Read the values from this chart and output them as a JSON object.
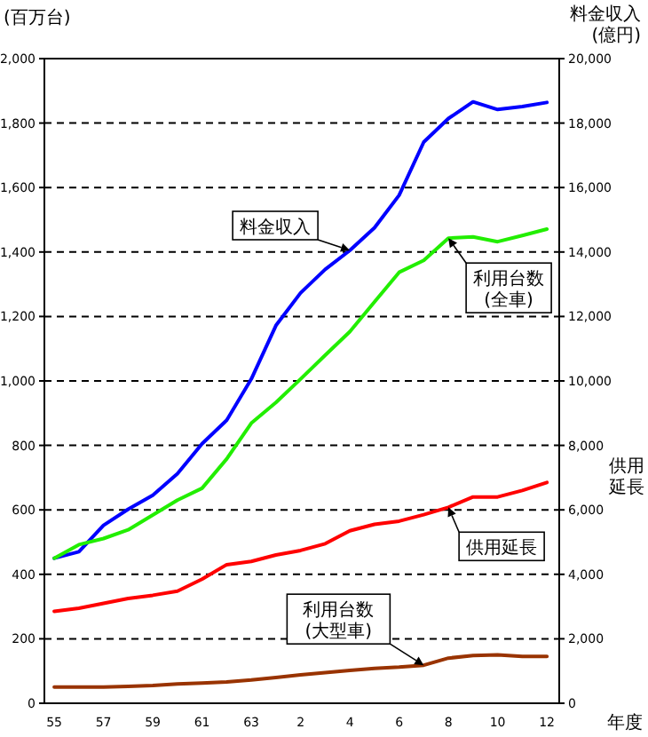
{
  "chart_data": {
    "type": "line",
    "ylabel": "(百万台)",
    "y2label": "料金収入 (億円)",
    "xlabel": "年度",
    "annotations": [
      "供用延長"
    ],
    "categories": [
      "55",
      null,
      "57",
      null,
      "59",
      null,
      "61",
      null,
      "63",
      null,
      "2",
      null,
      "4",
      null,
      "6",
      null,
      "8",
      null,
      "10",
      null,
      "12"
    ],
    "series": [
      {
        "name": "料金収入",
        "color": "#0000ff",
        "axis": "y2",
        "values": [
          4500,
          4700,
          5520,
          6020,
          6450,
          7120,
          8050,
          8780,
          10060,
          11720,
          12730,
          13460,
          14050,
          14750,
          15760,
          17410,
          18140,
          18660,
          18420,
          18510,
          18640
        ]
      },
      {
        "name": "利用台数 (全車)",
        "color": "#22ee00",
        "values": [
          450,
          492,
          511,
          538,
          584,
          630,
          667,
          758,
          869,
          933,
          1006,
          1080,
          1153,
          1245,
          1337,
          1374,
          1443,
          1447,
          1432,
          1451,
          1471
        ]
      },
      {
        "name": "供用延長",
        "color": "#ff0000",
        "axis": "y2",
        "values": [
          2850,
          2950,
          3100,
          3250,
          3350,
          3480,
          3850,
          4300,
          4400,
          4600,
          4740,
          4950,
          5350,
          5550,
          5650,
          5850,
          6080,
          6400,
          6400,
          6600,
          6850
        ]
      },
      {
        "name": "利用台数 (大型車)",
        "color": "#993300",
        "values": [
          50,
          50,
          50,
          52,
          55,
          60,
          63,
          66,
          72,
          80,
          88,
          95,
          102,
          108,
          112,
          118,
          140,
          148,
          150,
          145,
          145
        ]
      }
    ],
    "ylim": [
      0,
      2000
    ],
    "yticks": [
      0,
      200,
      400,
      600,
      800,
      {
        "value": 1000,
        "label": "1,000"
      },
      {
        "value": 1200,
        "label": "1,200"
      },
      {
        "value": 1400,
        "label": "1,400"
      },
      {
        "value": 1600,
        "label": "1,600"
      },
      {
        "value": 1800,
        "label": "1,800"
      },
      {
        "value": 2000,
        "label": "2,000"
      }
    ],
    "y2lim": [
      0,
      20000
    ],
    "y2ticks": [
      0,
      {
        "value": 2000,
        "label": "2,000"
      },
      {
        "value": 4000,
        "label": "4,000"
      },
      {
        "value": 6000,
        "label": "6,000"
      },
      {
        "value": 8000,
        "label": "8,000"
      },
      {
        "value": 10000,
        "label": "10,000"
      },
      {
        "value": 12000,
        "label": "12,000"
      },
      {
        "value": 14000,
        "label": "14,000"
      },
      {
        "value": 16000,
        "label": "16,000"
      },
      {
        "value": 18000,
        "label": "18,000"
      },
      {
        "value": 20000,
        "label": "20,000"
      }
    ],
    "grid": "y",
    "marker": "none",
    "line_style": "solid"
  }
}
